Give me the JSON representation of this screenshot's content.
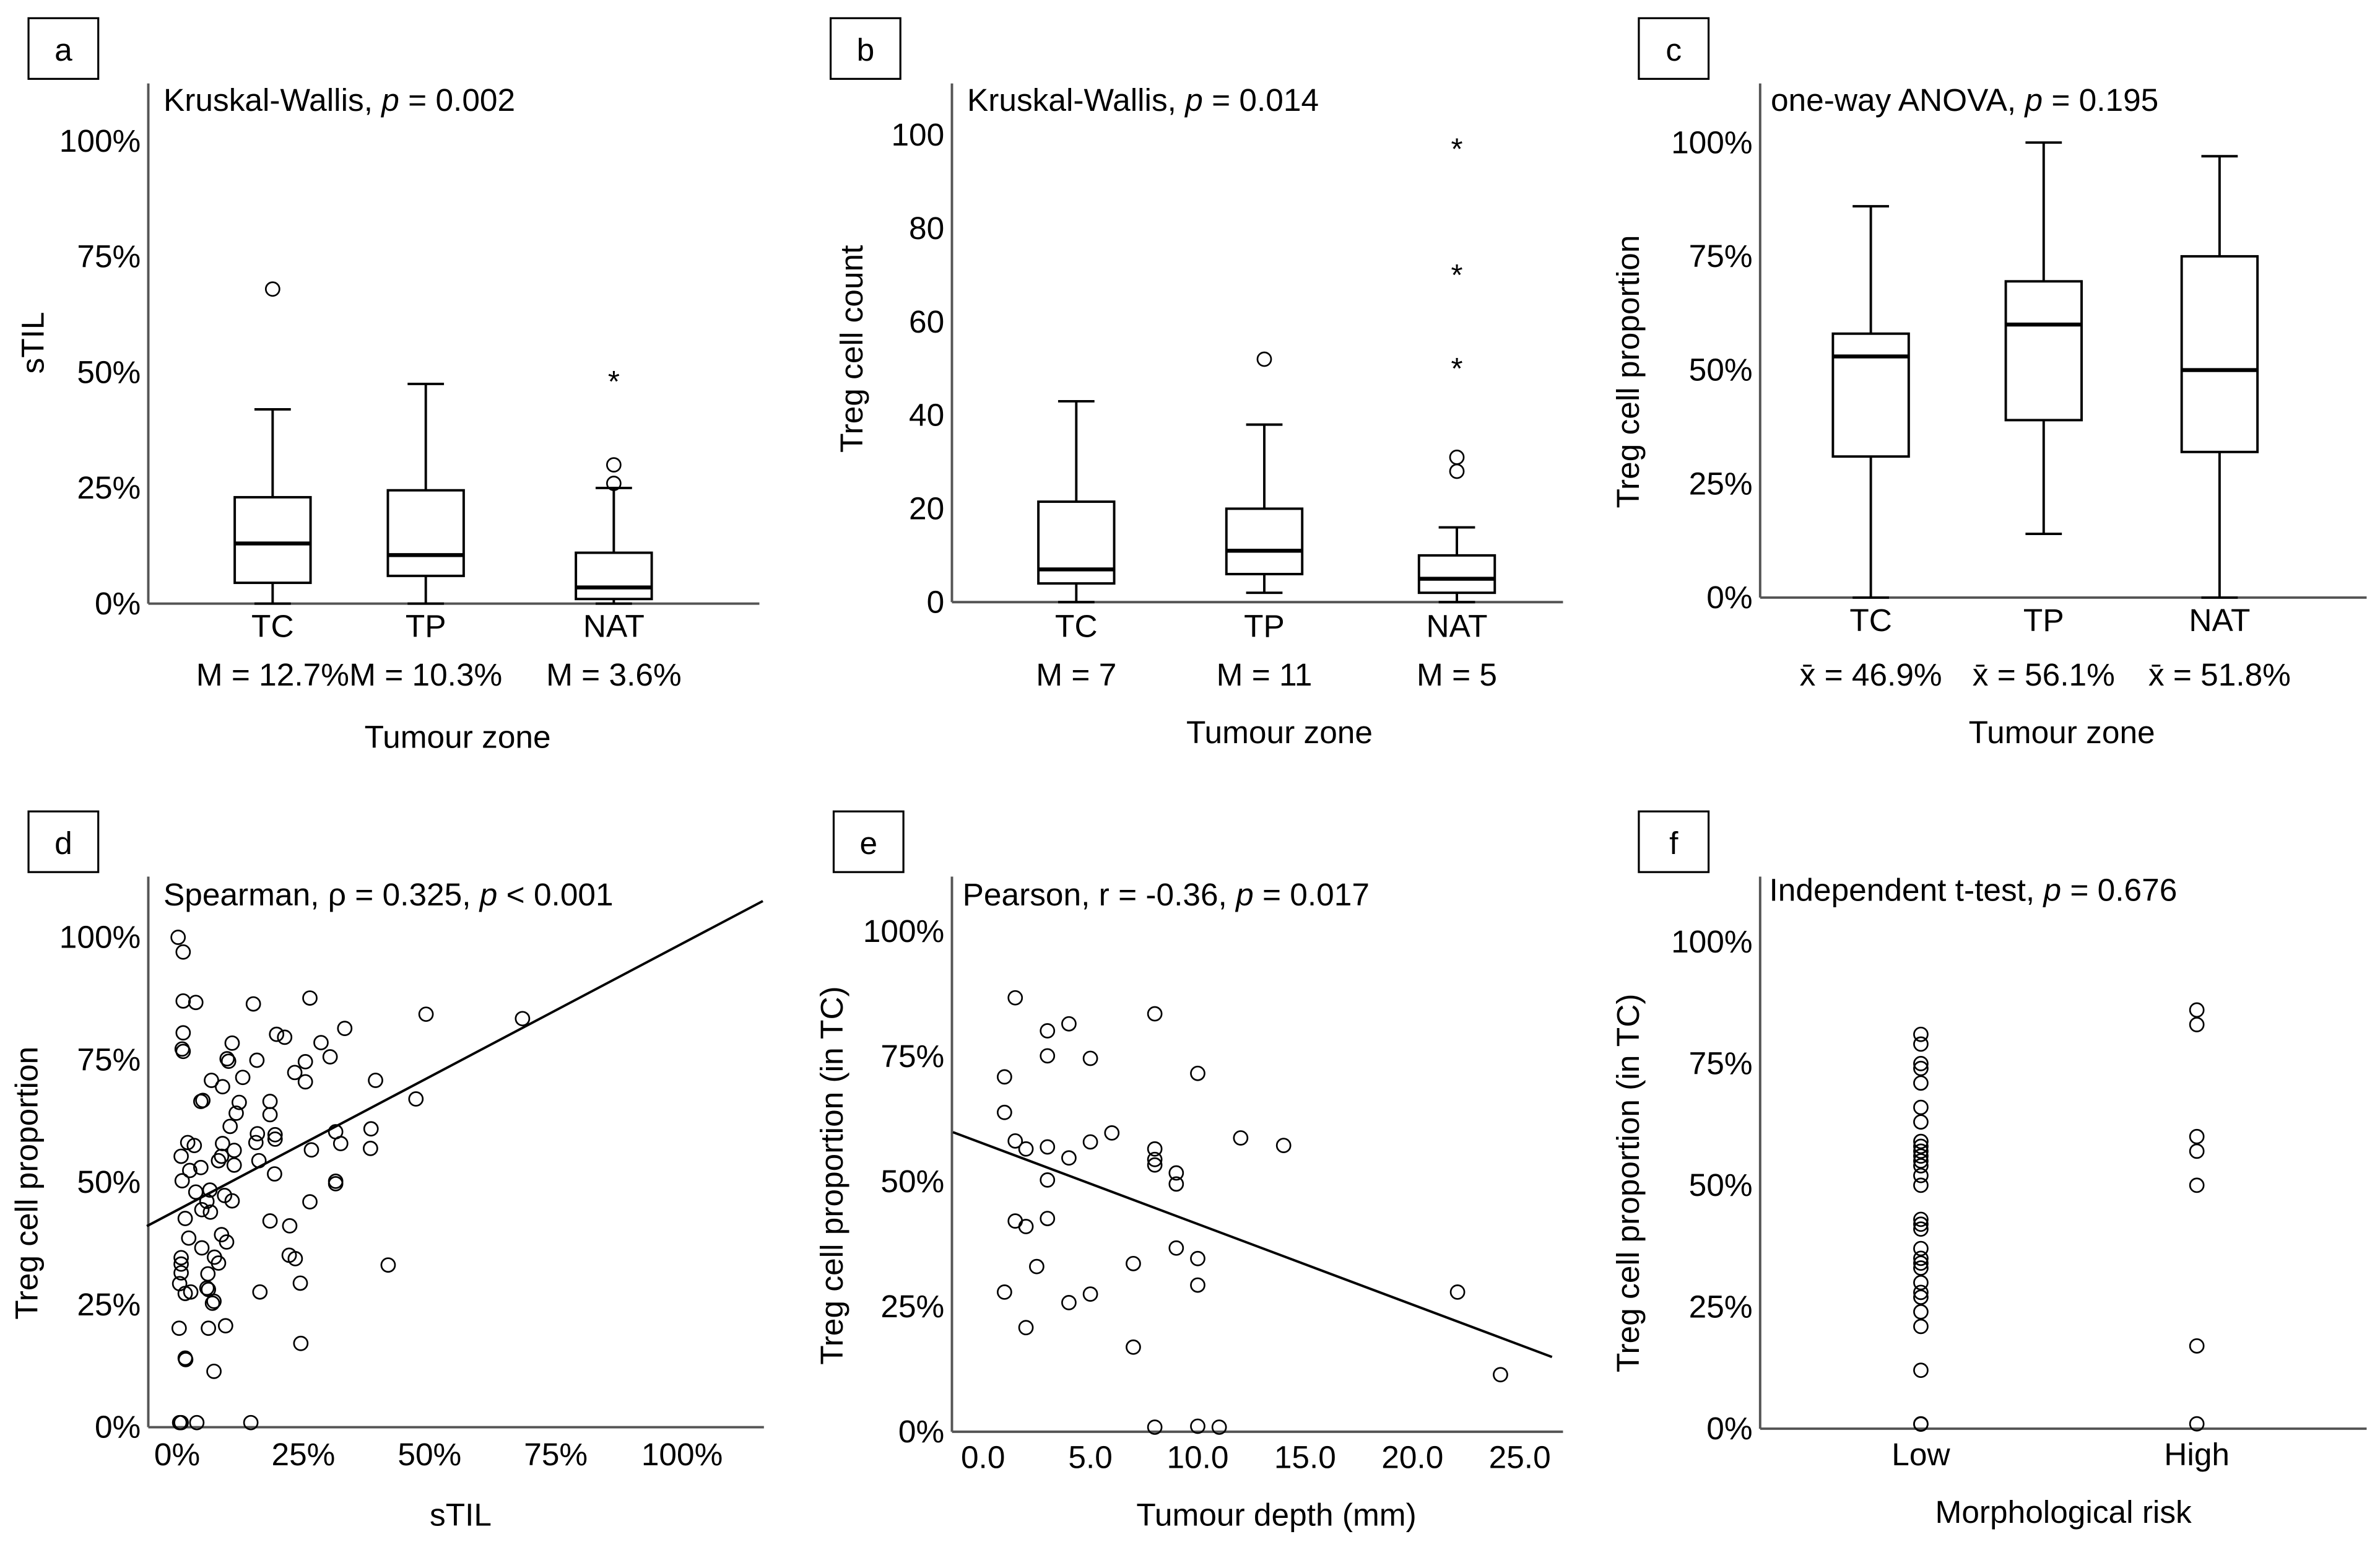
{
  "chart_data": [
    {
      "panel": "a",
      "type": "box",
      "title": {
        "prefix": "Kruskal-Wallis, ",
        "italic": "p",
        "suffix": " = 0.002"
      },
      "ylabel": "sTIL",
      "xlabel": "Tumour zone",
      "yticks": [
        "0%",
        "25%",
        "50%",
        "75%",
        "100%"
      ],
      "ylim": [
        0,
        100
      ],
      "categories": [
        "TC",
        "TP",
        "NAT"
      ],
      "stats_labels": [
        "M = 12.7%",
        "M = 10.3%",
        "M = 3.6%"
      ],
      "boxes": [
        {
          "min": 0,
          "q1": 4.5,
          "median": 13,
          "q3": 23,
          "max": 42,
          "outliers": [
            68
          ],
          "extremes": []
        },
        {
          "min": 0,
          "q1": 6,
          "median": 10.5,
          "q3": 24.5,
          "max": 47.5,
          "outliers": [],
          "extremes": []
        },
        {
          "min": 0,
          "q1": 1,
          "median": 3.5,
          "q3": 11,
          "max": 25,
          "outliers": [
            26,
            30
          ],
          "extremes": [
            49
          ]
        }
      ]
    },
    {
      "panel": "b",
      "type": "box",
      "title": {
        "prefix": "Kruskal-Wallis, ",
        "italic": "p",
        "suffix": " = 0.014"
      },
      "ylabel": "Treg cell count",
      "xlabel": "Tumour zone",
      "yticks": [
        "0",
        "20",
        "40",
        "60",
        "80",
        "100"
      ],
      "ylim": [
        0,
        100
      ],
      "categories": [
        "TC",
        "TP",
        "NAT"
      ],
      "stats_labels": [
        "M = 7",
        "M = 11",
        "M = 5"
      ],
      "boxes": [
        {
          "min": 0,
          "q1": 4,
          "median": 7,
          "q3": 21.5,
          "max": 43,
          "outliers": [],
          "extremes": []
        },
        {
          "min": 2,
          "q1": 6,
          "median": 11,
          "q3": 20,
          "max": 38,
          "outliers": [
            52
          ],
          "extremes": []
        },
        {
          "min": 0,
          "q1": 2,
          "median": 5,
          "q3": 10,
          "max": 16,
          "outliers": [
            28,
            31
          ],
          "extremes": [
            51,
            71,
            98
          ]
        }
      ]
    },
    {
      "panel": "c",
      "type": "box",
      "title": {
        "prefix": "one-way ANOVA, ",
        "italic": "p",
        "suffix": " = 0.195"
      },
      "ylabel": "Treg cell proportion",
      "xlabel": "Tumour zone",
      "yticks": [
        "0%",
        "25%",
        "50%",
        "75%",
        "100%"
      ],
      "ylim": [
        0,
        100
      ],
      "categories": [
        "TC",
        "TP",
        "NAT"
      ],
      "stats_labels": [
        "x̄ = 46.9%",
        "x̄ = 56.1%",
        "x̄ = 51.8%"
      ],
      "boxes": [
        {
          "min": 0,
          "q1": 31,
          "median": 53,
          "q3": 58,
          "max": 86,
          "outliers": [],
          "extremes": []
        },
        {
          "min": 14,
          "q1": 39,
          "median": 60,
          "q3": 69.5,
          "max": 100,
          "outliers": [],
          "extremes": []
        },
        {
          "min": 0,
          "q1": 32,
          "median": 50,
          "q3": 75,
          "max": 97,
          "outliers": [],
          "extremes": []
        }
      ]
    },
    {
      "panel": "d",
      "type": "scatter",
      "title": {
        "prefix": "Spearman, ρ = 0.325, ",
        "italic": "p",
        "suffix": " < 0.001"
      },
      "ylabel": "Treg cell proportion",
      "xlabel": "sTIL",
      "yticks": [
        "0%",
        "25%",
        "50%",
        "75%",
        "100%"
      ],
      "ylim": [
        0,
        100
      ],
      "xticks": [
        "0%",
        "25%",
        "50%",
        "75%",
        "100%"
      ],
      "xtick_values": [
        0,
        25,
        50,
        75,
        100
      ],
      "xlim": [
        -6,
        116
      ],
      "fit": {
        "slope": 0.544,
        "intercept": 44.3
      },
      "points": [
        [
          0.2,
          100
        ],
        [
          1.2,
          97
        ],
        [
          1.2,
          87
        ],
        [
          3.7,
          86.7
        ],
        [
          15.1,
          86.4
        ],
        [
          26.3,
          87.6
        ],
        [
          49.3,
          84.3
        ],
        [
          68.4,
          83.4
        ],
        [
          33.2,
          81.4
        ],
        [
          1.2,
          80.5
        ],
        [
          19.7,
          80.2
        ],
        [
          21.3,
          79.6
        ],
        [
          10.9,
          78.4
        ],
        [
          28.5,
          78.5
        ],
        [
          1,
          77.2
        ],
        [
          1.2,
          76.7
        ],
        [
          9.9,
          75.2
        ],
        [
          10.2,
          74.7
        ],
        [
          15.8,
          74.9
        ],
        [
          25.4,
          74.6
        ],
        [
          30.3,
          75.6
        ],
        [
          23.3,
          72.4
        ],
        [
          13,
          71.4
        ],
        [
          6.8,
          70.8
        ],
        [
          9,
          69.5
        ],
        [
          25.4,
          70.5
        ],
        [
          39.3,
          70.8
        ],
        [
          4.7,
          66.5
        ],
        [
          5.1,
          66.7
        ],
        [
          12.3,
          66.3
        ],
        [
          18.4,
          66.5
        ],
        [
          18.4,
          63.8
        ],
        [
          47.3,
          67
        ],
        [
          11.7,
          64.1
        ],
        [
          10.5,
          61.4
        ],
        [
          15.9,
          59.9
        ],
        [
          19.4,
          59.7
        ],
        [
          19.4,
          58.8
        ],
        [
          31.4,
          60.3
        ],
        [
          38.4,
          60.9
        ],
        [
          2.1,
          58.1
        ],
        [
          3.4,
          57.5
        ],
        [
          9,
          57.9
        ],
        [
          15.6,
          58.1
        ],
        [
          32.4,
          57.9
        ],
        [
          38.3,
          56.9
        ],
        [
          0.8,
          55.3
        ],
        [
          11.3,
          56.5
        ],
        [
          26.6,
          56.6
        ],
        [
          8.8,
          55.3
        ],
        [
          8.2,
          54.4
        ],
        [
          16.2,
          54.4
        ],
        [
          11.3,
          53.5
        ],
        [
          4.7,
          53
        ],
        [
          2.5,
          52.4
        ],
        [
          1,
          50.3
        ],
        [
          19.3,
          51.7
        ],
        [
          31.4,
          50.2
        ],
        [
          31.4,
          49.7
        ],
        [
          3.7,
          48
        ],
        [
          6.5,
          48.4
        ],
        [
          9.4,
          47.3
        ],
        [
          10.9,
          46.2
        ],
        [
          5.9,
          46.1
        ],
        [
          26.3,
          46
        ],
        [
          4.9,
          44.4
        ],
        [
          6.6,
          43.9
        ],
        [
          1.6,
          42.6
        ],
        [
          18.4,
          42.1
        ],
        [
          22.3,
          41.1
        ],
        [
          2.3,
          38.6
        ],
        [
          8.8,
          39.3
        ],
        [
          9.8,
          37.8
        ],
        [
          4.9,
          36.6
        ],
        [
          0.8,
          34.6
        ],
        [
          7.4,
          34.7
        ],
        [
          0.8,
          33.3
        ],
        [
          8.2,
          33.5
        ],
        [
          22.2,
          35.1
        ],
        [
          23.4,
          34.4
        ],
        [
          41.8,
          33.1
        ],
        [
          0.8,
          31.5
        ],
        [
          6.1,
          31.3
        ],
        [
          0.5,
          29.3
        ],
        [
          5.9,
          28.4
        ],
        [
          1.6,
          27.3
        ],
        [
          2.7,
          27.6
        ],
        [
          6.2,
          28.1
        ],
        [
          7.3,
          25.7
        ],
        [
          7,
          25.3
        ],
        [
          16.4,
          27.6
        ],
        [
          24.4,
          29.4
        ],
        [
          0.4,
          20.2
        ],
        [
          6.2,
          20.2
        ],
        [
          9.6,
          20.7
        ],
        [
          24.5,
          17.1
        ],
        [
          1.6,
          14.1
        ],
        [
          1.7,
          13.8
        ],
        [
          7.3,
          11.4
        ],
        [
          0.5,
          0
        ],
        [
          3.9,
          0.9
        ],
        [
          14.6,
          0.7
        ],
        [
          0.8,
          0
        ]
      ]
    },
    {
      "panel": "e",
      "type": "scatter",
      "title": {
        "prefix": "Pearson, r = -0.36, ",
        "italic": "p",
        "suffix": " = 0.017"
      },
      "ylabel": "Treg cell proportion (in TC)",
      "xlabel": "Tumour depth (mm)",
      "yticks": [
        "0%",
        "25%",
        "50%",
        "75%",
        "100%"
      ],
      "ylim": [
        0,
        100
      ],
      "xticks": [
        "0.0",
        "5.0",
        "10.0",
        "15.0",
        "20.0",
        "25.0"
      ],
      "xtick_values": [
        0,
        5,
        10,
        15,
        20,
        25
      ],
      "xlim": [
        -1.4,
        26.5
      ],
      "fit": {
        "slope": -1.61,
        "intercept": 57.6
      },
      "points": [
        [
          1.5,
          86.7
        ],
        [
          8,
          83.5
        ],
        [
          4,
          81.5
        ],
        [
          3,
          80.1
        ],
        [
          3,
          75.1
        ],
        [
          5,
          74.6
        ],
        [
          1,
          70.9
        ],
        [
          10,
          71.6
        ],
        [
          1,
          63.8
        ],
        [
          6,
          59.7
        ],
        [
          1.5,
          58.1
        ],
        [
          2,
          56.5
        ],
        [
          3,
          56.9
        ],
        [
          5,
          57.9
        ],
        [
          12,
          58.7
        ],
        [
          14,
          57.2
        ],
        [
          4,
          54.7
        ],
        [
          8,
          56.5
        ],
        [
          8,
          54.4
        ],
        [
          8,
          53.3
        ],
        [
          9,
          51.7
        ],
        [
          9,
          49.5
        ],
        [
          3,
          50.3
        ],
        [
          1.5,
          42.1
        ],
        [
          2,
          41
        ],
        [
          3,
          42.6
        ],
        [
          9,
          36.7
        ],
        [
          10,
          34.6
        ],
        [
          2.5,
          33
        ],
        [
          7,
          33.6
        ],
        [
          10,
          29.3
        ],
        [
          1,
          27.9
        ],
        [
          4,
          25.8
        ],
        [
          5,
          27.5
        ],
        [
          22.1,
          27.9
        ],
        [
          2,
          20.8
        ],
        [
          7,
          16.9
        ],
        [
          24.1,
          11.4
        ],
        [
          8,
          0
        ],
        [
          10,
          1.1
        ],
        [
          11,
          0.7
        ]
      ]
    },
    {
      "panel": "f",
      "type": "strip",
      "title": {
        "prefix": "Independent t-test, ",
        "italic": "p",
        "suffix": " = 0.676"
      },
      "ylabel": "Treg cell proportion (in TC)",
      "xlabel": "Morphological risk",
      "yticks": [
        "0%",
        "25%",
        "50%",
        "75%",
        "100%"
      ],
      "ylim": [
        0,
        100
      ],
      "categories": [
        "Low",
        "High"
      ],
      "groups": [
        [
          81,
          79,
          75,
          74,
          71,
          66,
          63,
          59,
          58,
          57,
          56,
          55,
          54,
          52,
          50,
          43,
          42,
          41,
          37,
          35,
          34,
          33,
          30,
          28,
          27,
          24,
          21,
          12,
          1,
          0
        ],
        [
          86,
          83,
          60,
          57,
          50,
          17,
          1
        ]
      ]
    }
  ]
}
